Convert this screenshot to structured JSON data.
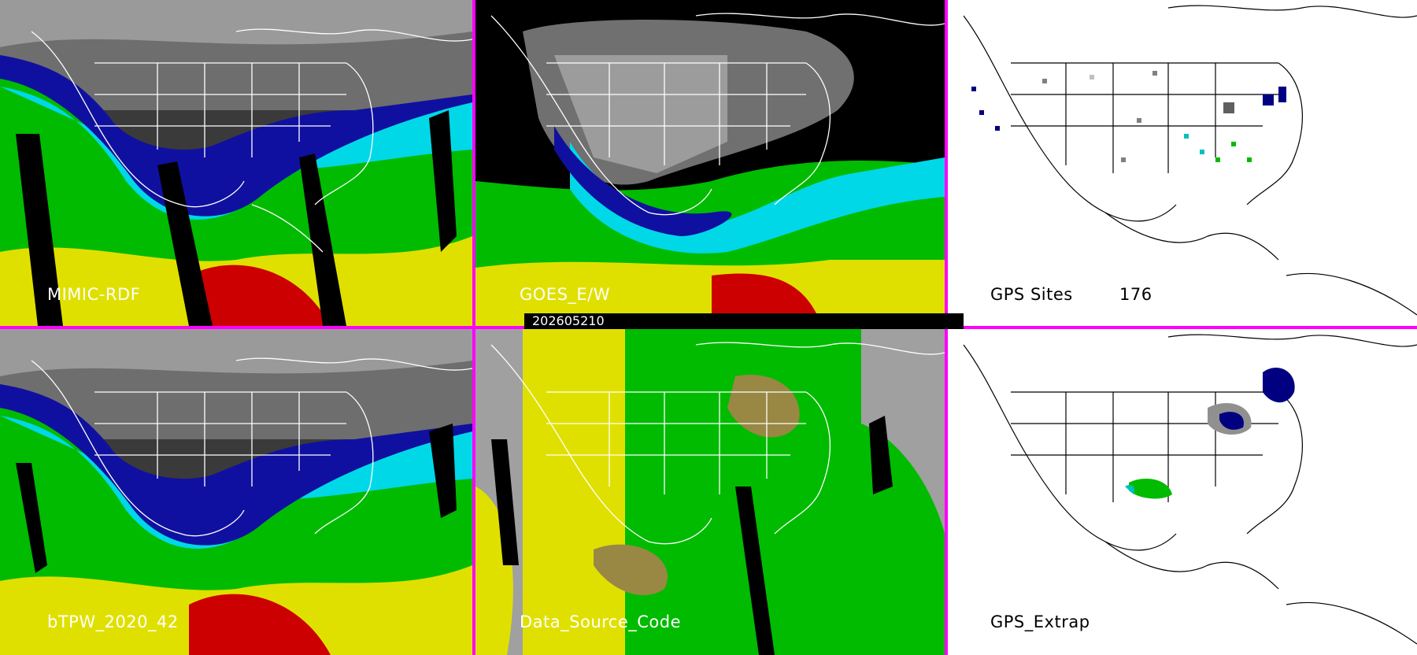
{
  "panels": {
    "mimic_rdf": {
      "label": "MIMIC-RDF"
    },
    "goes_ew": {
      "label": "GOES_E/W"
    },
    "gps_sites": {
      "label": "GPS Sites",
      "count": "176"
    },
    "btpw": {
      "label": "bTPW_2020_42"
    },
    "data_source_code": {
      "label": "Data_Source_Code"
    },
    "gps_extrap": {
      "label": "GPS_Extrap"
    }
  },
  "timestamp": "202605210",
  "colors": {
    "divider": "#ff00ff",
    "tpw_scale": [
      "#e6e6e6",
      "#808080",
      "#000080",
      "#0000ff",
      "#00e5ee",
      "#00cc00",
      "#e0e000",
      "#cc0000"
    ],
    "source_codes": [
      "#a0a0a0",
      "#e0e000",
      "#00bb00",
      "#998844",
      "#000000"
    ]
  }
}
